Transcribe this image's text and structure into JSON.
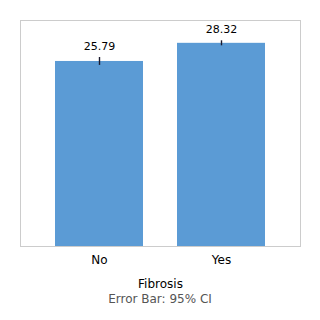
{
  "chart_data": {
    "type": "bar",
    "subtitle": "Error Bar: 95% CI",
    "xlabel": "Fibrosis",
    "categories": [
      "No",
      "Yes"
    ],
    "values": [
      25.79,
      28.32
    ],
    "errors": [
      0.55,
      0.35
    ],
    "color": "#5B9BD5",
    "ylim": [
      0,
      31.5
    ],
    "yticks": [],
    "grid": false,
    "data_labels": true,
    "tick_labels": "x"
  }
}
